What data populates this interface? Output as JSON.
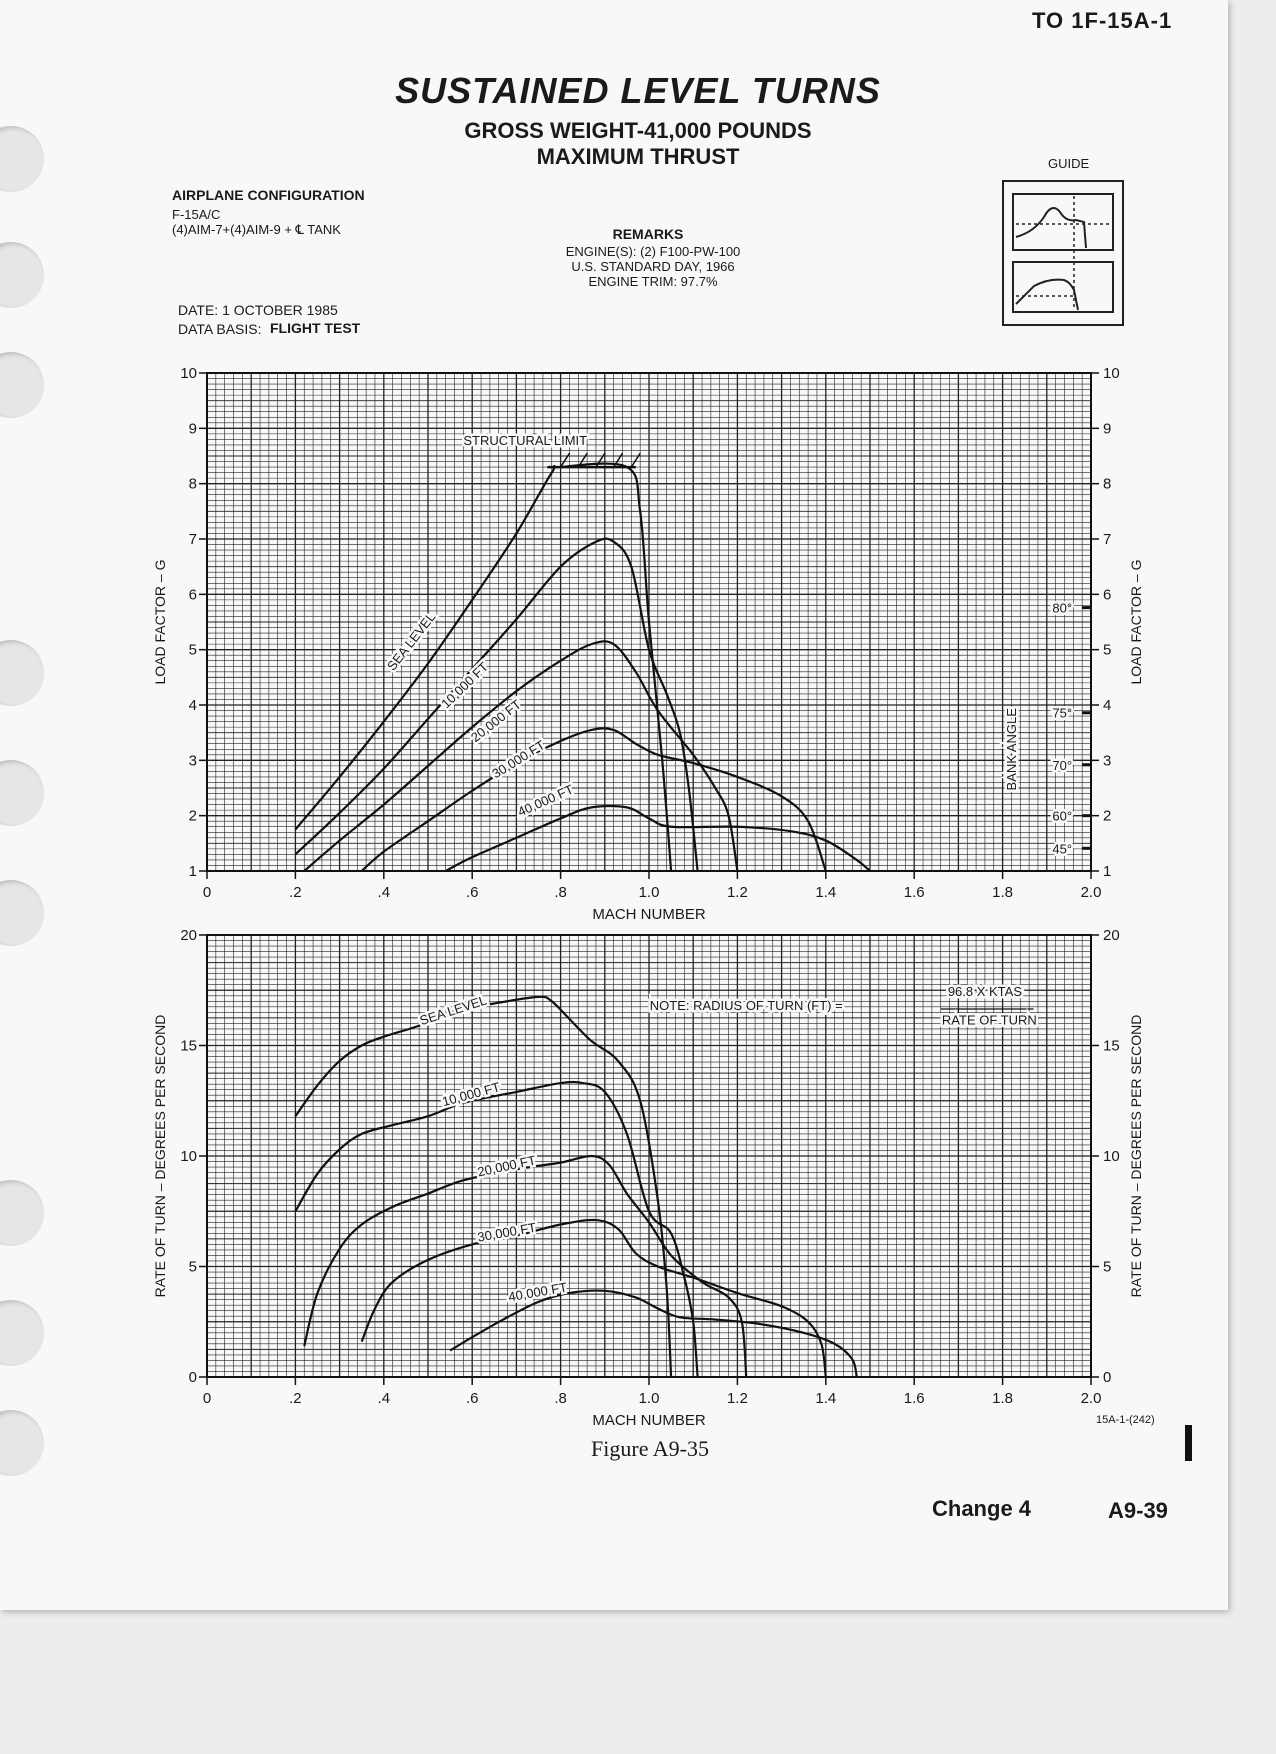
{
  "header": {
    "doc_number": "TO 1F-15A-1"
  },
  "title": {
    "main": "SUSTAINED LEVEL TURNS",
    "line2": "GROSS WEIGHT-41,000 POUNDS",
    "line3": "MAXIMUM THRUST"
  },
  "config": {
    "heading": "AIRPLANE CONFIGURATION",
    "line1": "F-15A/C",
    "line2": "(4)AIM-7+(4)AIM-9 + ℄ TANK",
    "date": "DATE:  1 OCTOBER 1985",
    "basis_label": "DATA BASIS:",
    "basis_value": "FLIGHT TEST"
  },
  "remarks": {
    "heading": "REMARKS",
    "line1": "ENGINE(S):  (2) F100-PW-100",
    "line2": "U.S. STANDARD DAY, 1966",
    "line3": "ENGINE TRIM:  97.7%"
  },
  "guide": {
    "label": "GUIDE"
  },
  "chart_data": [
    {
      "type": "line",
      "xlabel": "MACH NUMBER",
      "ylabel": "LOAD FACTOR – G",
      "ylabel_right": "LOAD FACTOR – G",
      "xlim": [
        0,
        2.0
      ],
      "ylim": [
        1,
        10
      ],
      "x_ticks": [
        "0",
        ".2",
        ".4",
        ".6",
        ".8",
        "1.0",
        "1.2",
        "1.4",
        "1.6",
        "1.8",
        "2.0"
      ],
      "y_ticks": [
        "1",
        "2",
        "3",
        "4",
        "5",
        "6",
        "7",
        "8",
        "9",
        "10"
      ],
      "grid": true,
      "annotations": [
        "STRUCTURAL LIMIT",
        "BANK ANGLE",
        "80°",
        "75°",
        "70°",
        "60°",
        "45°"
      ],
      "bank_angle_marks": [
        {
          "label": "80°",
          "g": 5.76
        },
        {
          "label": "75°",
          "g": 3.86
        },
        {
          "label": "70°",
          "g": 2.92
        },
        {
          "label": "60°",
          "g": 2.0
        },
        {
          "label": "45°",
          "g": 1.41
        }
      ],
      "structural_limit": {
        "g": 8.3,
        "mach": [
          0.77,
          0.97
        ]
      },
      "series": [
        {
          "name": "SEA LEVEL",
          "points": [
            [
              0.2,
              1.75
            ],
            [
              0.3,
              2.7
            ],
            [
              0.4,
              3.7
            ],
            [
              0.5,
              4.75
            ],
            [
              0.6,
              5.9
            ],
            [
              0.7,
              7.1
            ],
            [
              0.78,
              8.2
            ],
            [
              0.8,
              8.3
            ],
            [
              0.95,
              8.3
            ],
            [
              0.98,
              7.5
            ],
            [
              1.0,
              5.5
            ],
            [
              1.03,
              3.0
            ],
            [
              1.05,
              1.0
            ]
          ]
        },
        {
          "name": "10,000 FT",
          "points": [
            [
              0.2,
              1.3
            ],
            [
              0.3,
              2.05
            ],
            [
              0.4,
              2.85
            ],
            [
              0.5,
              3.75
            ],
            [
              0.6,
              4.65
            ],
            [
              0.7,
              5.55
            ],
            [
              0.8,
              6.5
            ],
            [
              0.88,
              6.95
            ],
            [
              0.92,
              6.95
            ],
            [
              0.96,
              6.5
            ],
            [
              1.0,
              5.0
            ],
            [
              1.04,
              4.2
            ],
            [
              1.07,
              3.5
            ],
            [
              1.09,
              2.5
            ],
            [
              1.11,
              1.0
            ]
          ]
        },
        {
          "name": "20,000 FT",
          "points": [
            [
              0.22,
              1.0
            ],
            [
              0.3,
              1.55
            ],
            [
              0.4,
              2.2
            ],
            [
              0.5,
              2.9
            ],
            [
              0.6,
              3.6
            ],
            [
              0.7,
              4.25
            ],
            [
              0.8,
              4.8
            ],
            [
              0.87,
              5.1
            ],
            [
              0.92,
              5.1
            ],
            [
              0.97,
              4.6
            ],
            [
              1.02,
              3.9
            ],
            [
              1.1,
              3.1
            ],
            [
              1.15,
              2.5
            ],
            [
              1.18,
              2.0
            ],
            [
              1.2,
              1.0
            ]
          ]
        },
        {
          "name": "30,000 FT",
          "points": [
            [
              0.35,
              1.0
            ],
            [
              0.4,
              1.35
            ],
            [
              0.5,
              1.9
            ],
            [
              0.6,
              2.45
            ],
            [
              0.7,
              2.95
            ],
            [
              0.8,
              3.35
            ],
            [
              0.87,
              3.55
            ],
            [
              0.92,
              3.55
            ],
            [
              0.97,
              3.3
            ],
            [
              1.02,
              3.1
            ],
            [
              1.1,
              2.95
            ],
            [
              1.2,
              2.7
            ],
            [
              1.3,
              2.35
            ],
            [
              1.36,
              1.9
            ],
            [
              1.4,
              1.0
            ]
          ]
        },
        {
          "name": "40,000 FT",
          "points": [
            [
              0.54,
              1.0
            ],
            [
              0.6,
              1.25
            ],
            [
              0.7,
              1.6
            ],
            [
              0.8,
              1.95
            ],
            [
              0.87,
              2.15
            ],
            [
              0.95,
              2.15
            ],
            [
              1.0,
              1.95
            ],
            [
              1.05,
              1.8
            ],
            [
              1.2,
              1.8
            ],
            [
              1.32,
              1.72
            ],
            [
              1.4,
              1.55
            ],
            [
              1.47,
              1.2
            ],
            [
              1.5,
              1.0
            ]
          ]
        }
      ]
    },
    {
      "type": "line",
      "xlabel": "MACH NUMBER",
      "ylabel": "RATE OF TURN – DEGREES PER SECOND",
      "ylabel_right": "RATE OF TURN – DEGREES PER SECOND",
      "xlim": [
        0,
        2.0
      ],
      "ylim": [
        0,
        20
      ],
      "x_ticks": [
        "0",
        ".2",
        ".4",
        ".6",
        ".8",
        "1.0",
        "1.2",
        "1.4",
        "1.6",
        "1.8",
        "2.0"
      ],
      "y_ticks": [
        "0",
        "5",
        "10",
        "15",
        "20"
      ],
      "grid": true,
      "note": {
        "prefix": "NOTE:  RADIUS OF TURN (FT) =",
        "numerator": "96.8 X KTAS",
        "denominator": "RATE OF TURN"
      },
      "series": [
        {
          "name": "SEA LEVEL",
          "points": [
            [
              0.2,
              11.8
            ],
            [
              0.25,
              13.2
            ],
            [
              0.3,
              14.3
            ],
            [
              0.35,
              15.0
            ],
            [
              0.4,
              15.4
            ],
            [
              0.48,
              15.9
            ],
            [
              0.55,
              16.5
            ],
            [
              0.65,
              16.9
            ],
            [
              0.75,
              17.2
            ],
            [
              0.78,
              17.0
            ],
            [
              0.82,
              16.2
            ],
            [
              0.87,
              15.2
            ],
            [
              0.93,
              14.3
            ],
            [
              0.98,
              12.5
            ],
            [
              1.02,
              8.0
            ],
            [
              1.04,
              4.0
            ],
            [
              1.05,
              0.0
            ]
          ]
        },
        {
          "name": "10,000 FT",
          "points": [
            [
              0.2,
              7.5
            ],
            [
              0.25,
              9.2
            ],
            [
              0.3,
              10.3
            ],
            [
              0.35,
              11.0
            ],
            [
              0.42,
              11.4
            ],
            [
              0.5,
              11.8
            ],
            [
              0.58,
              12.4
            ],
            [
              0.7,
              12.9
            ],
            [
              0.8,
              13.3
            ],
            [
              0.85,
              13.3
            ],
            [
              0.9,
              12.9
            ],
            [
              0.95,
              11.0
            ],
            [
              1.0,
              7.5
            ],
            [
              1.05,
              6.5
            ],
            [
              1.08,
              4.5
            ],
            [
              1.1,
              2.5
            ],
            [
              1.11,
              0.0
            ]
          ]
        },
        {
          "name": "20,000 FT",
          "points": [
            [
              0.22,
              1.4
            ],
            [
              0.25,
              3.8
            ],
            [
              0.3,
              5.8
            ],
            [
              0.35,
              6.9
            ],
            [
              0.42,
              7.7
            ],
            [
              0.5,
              8.3
            ],
            [
              0.58,
              8.9
            ],
            [
              0.7,
              9.4
            ],
            [
              0.8,
              9.7
            ],
            [
              0.87,
              10.0
            ],
            [
              0.91,
              9.6
            ],
            [
              0.95,
              8.3
            ],
            [
              1.0,
              7.0
            ],
            [
              1.05,
              5.5
            ],
            [
              1.12,
              4.3
            ],
            [
              1.18,
              3.6
            ],
            [
              1.21,
              2.5
            ],
            [
              1.22,
              0.0
            ]
          ]
        },
        {
          "name": "30,000 FT",
          "points": [
            [
              0.35,
              1.6
            ],
            [
              0.38,
              3.1
            ],
            [
              0.42,
              4.3
            ],
            [
              0.5,
              5.3
            ],
            [
              0.6,
              6.0
            ],
            [
              0.7,
              6.4
            ],
            [
              0.8,
              6.9
            ],
            [
              0.88,
              7.1
            ],
            [
              0.93,
              6.7
            ],
            [
              0.97,
              5.6
            ],
            [
              1.02,
              5.0
            ],
            [
              1.1,
              4.5
            ],
            [
              1.2,
              3.8
            ],
            [
              1.3,
              3.2
            ],
            [
              1.36,
              2.5
            ],
            [
              1.39,
              1.5
            ],
            [
              1.4,
              0.0
            ]
          ]
        },
        {
          "name": "40,000 FT",
          "points": [
            [
              0.55,
              1.2
            ],
            [
              0.6,
              1.8
            ],
            [
              0.67,
              2.6
            ],
            [
              0.75,
              3.4
            ],
            [
              0.82,
              3.8
            ],
            [
              0.9,
              3.9
            ],
            [
              0.97,
              3.6
            ],
            [
              1.02,
              3.1
            ],
            [
              1.07,
              2.7
            ],
            [
              1.15,
              2.6
            ],
            [
              1.25,
              2.4
            ],
            [
              1.35,
              2.0
            ],
            [
              1.42,
              1.5
            ],
            [
              1.46,
              0.8
            ],
            [
              1.47,
              0.0
            ]
          ]
        }
      ]
    }
  ],
  "footer": {
    "figure_caption": "Figure A9-35",
    "figure_id": "15A-1-(242)",
    "change": "Change 4",
    "page": "A9-39"
  }
}
